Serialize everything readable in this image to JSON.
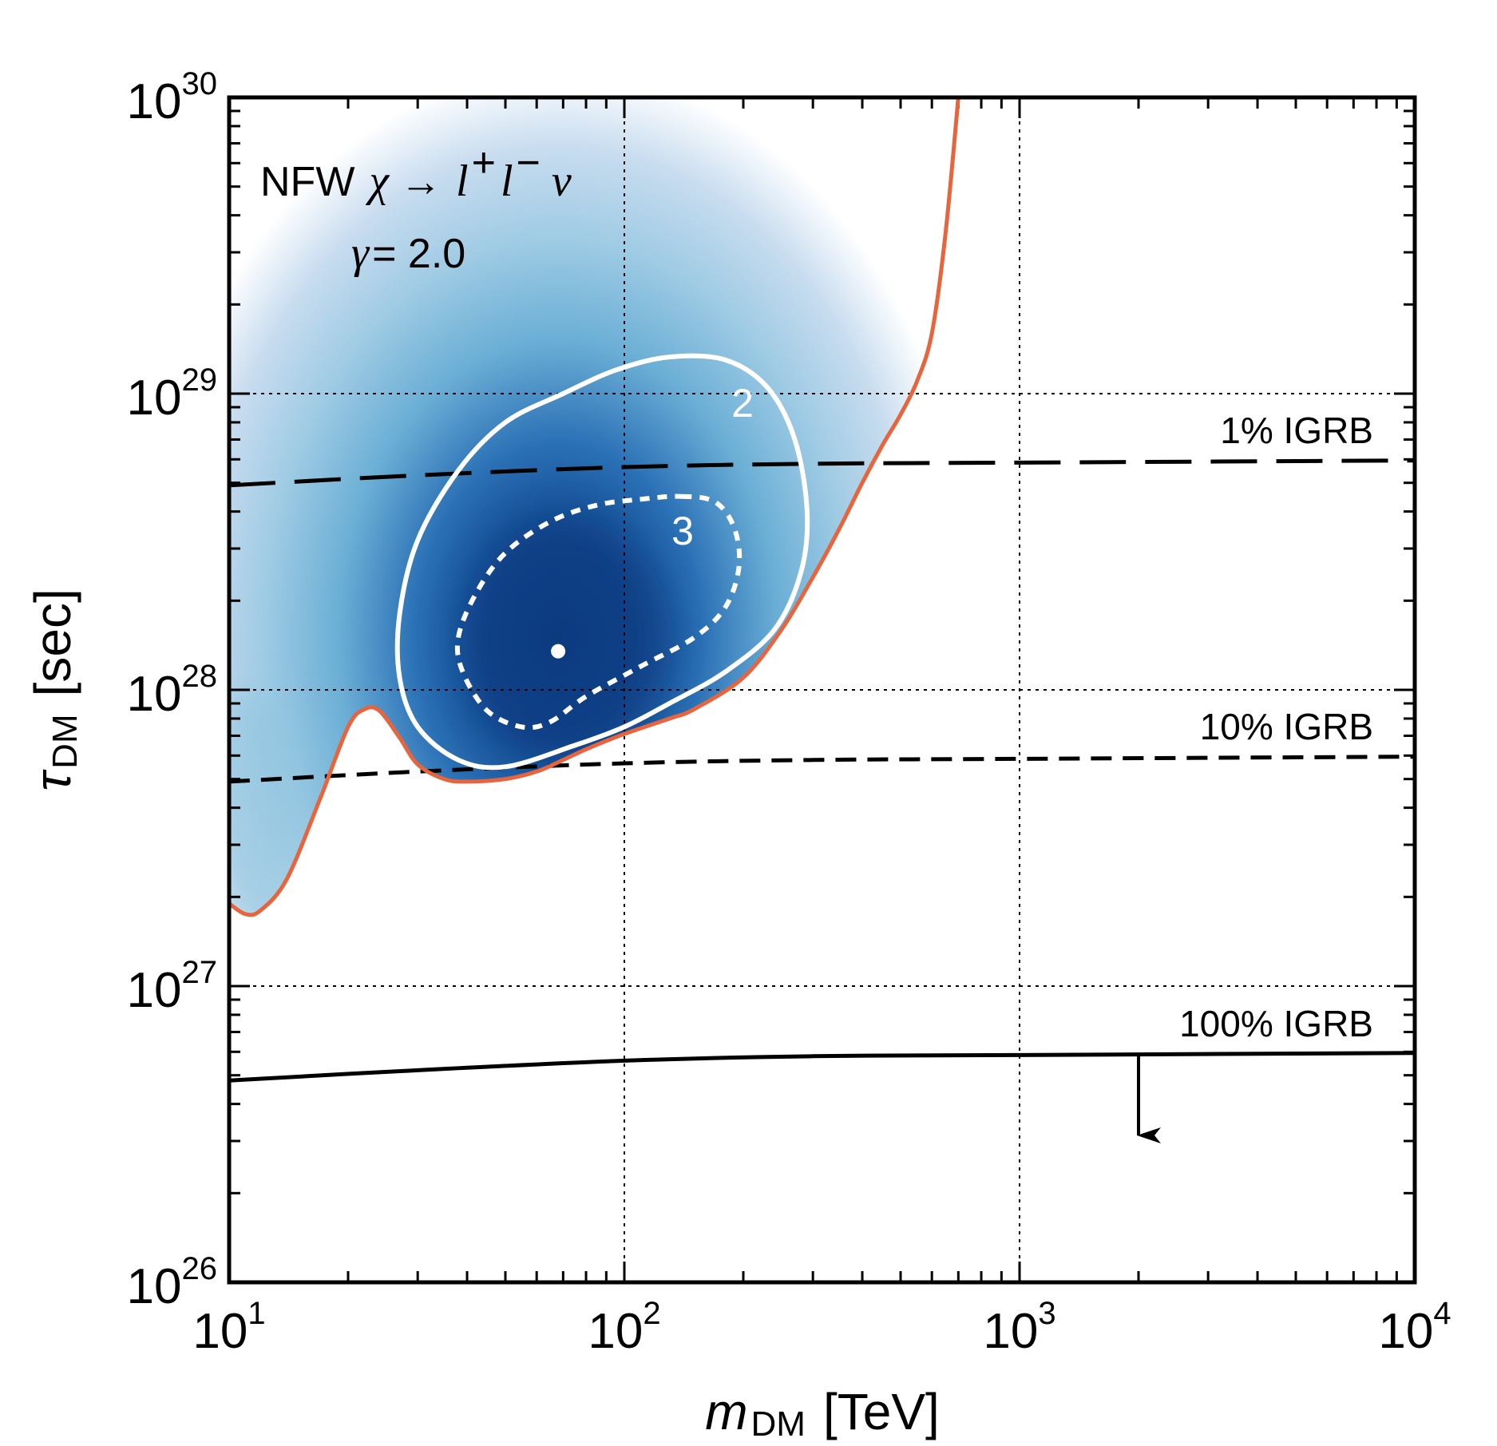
{
  "chart_data": {
    "type": "line",
    "xscale": "log",
    "yscale": "log",
    "xlim": [
      10,
      10000
    ],
    "ylim": [
      1e+26,
      1e+30
    ],
    "grid": true,
    "xlabel": {
      "var": "m",
      "sub": "DM",
      "unit": "[TeV]"
    },
    "ylabel": {
      "var": "τ",
      "sub": "DM",
      "unit": "[sec]"
    },
    "x_ticks": [
      {
        "value": 10,
        "base": "10",
        "exp": "1"
      },
      {
        "value": 100,
        "base": "10",
        "exp": "2"
      },
      {
        "value": 1000,
        "base": "10",
        "exp": "3"
      },
      {
        "value": 10000,
        "base": "10",
        "exp": "4"
      }
    ],
    "y_ticks": [
      {
        "value": 1e+26,
        "base": "10",
        "exp": "26"
      },
      {
        "value": 1e+27,
        "base": "10",
        "exp": "27"
      },
      {
        "value": 1e+28,
        "base": "10",
        "exp": "28"
      },
      {
        "value": 1e+29,
        "base": "10",
        "exp": "29"
      },
      {
        "value": 1e+30,
        "base": "10",
        "exp": "30"
      }
    ],
    "annotation": {
      "line1_prefix": "NFW",
      "line1_chi": "χ",
      "line1_arrow": "→",
      "line1_l": "l",
      "line1_plus": "+",
      "line1_minus": "−",
      "line1_nu": "ν",
      "line2_gamma": "γ",
      "line2_rest": " = 2.0"
    },
    "series": [
      {
        "label": "1% IGRB",
        "style": "long-dash",
        "color": "#000000",
        "x": [
          10,
          30,
          100,
          300,
          1000,
          10000
        ],
        "y": [
          4.9e+28,
          5.3e+28,
          5.65e+28,
          5.8e+28,
          5.85e+28,
          5.95e+28
        ]
      },
      {
        "label": "10% IGRB",
        "style": "dash",
        "color": "#000000",
        "x": [
          10,
          30,
          100,
          300,
          1000,
          10000
        ],
        "y": [
          4.9e+27,
          5.3e+27,
          5.65e+27,
          5.8e+27,
          5.85e+27,
          5.95e+27
        ]
      },
      {
        "label": "100% IGRB",
        "style": "solid",
        "color": "#000000",
        "x": [
          10,
          30,
          100,
          300,
          1000,
          10000
        ],
        "y": [
          4.8e+26,
          5.2e+26,
          5.6e+26,
          5.8e+26,
          5.85e+26,
          5.95e+26
        ],
        "arrow": {
          "x": 2000,
          "y_from": 5.9e+26,
          "y_to": 2.6e+26
        }
      },
      {
        "label": "",
        "style": "solid",
        "color": "#e8643c",
        "x": [
          10,
          11,
          12,
          14,
          17,
          20,
          22,
          24,
          27,
          30,
          35,
          40,
          50,
          60,
          70,
          80,
          100,
          130,
          150,
          200,
          250,
          300,
          350,
          400,
          450,
          500,
          550,
          600,
          650,
          700
        ],
        "y": [
          1.9e+27,
          1.75e+27,
          1.8e+27,
          2.3e+27,
          4.3e+27,
          7.5e+27,
          8.6e+27,
          8.5e+27,
          6.9e+27,
          5.6e+27,
          5e+27,
          4.9e+27,
          5e+27,
          5.3e+27,
          5.8e+27,
          6.3e+27,
          7.1e+27,
          8e+27,
          8.6e+27,
          1.1e+28,
          1.6e+28,
          2.4e+28,
          3.5e+28,
          5e+28,
          6.7e+28,
          8.5e+28,
          1.1e+29,
          1.6e+29,
          3.5e+29,
          1e+30
        ]
      }
    ],
    "contours": [
      {
        "level_label": "2",
        "style": "solid",
        "color": "#ffffff",
        "x": [
          130,
          180,
          230,
          270,
          290,
          280,
          240,
          180,
          130,
          100,
          75,
          50,
          38,
          30,
          27,
          27,
          30,
          38,
          50,
          70,
          95,
          130
        ],
        "y": [
          1.33e+29,
          1.3e+29,
          1.05e+29,
          7e+28,
          4e+28,
          2.5e+28,
          1.6e+28,
          1.15e+28,
          9e+27,
          7.5e+27,
          6.5e+27,
          5.5e+27,
          5.8e+27,
          7.5e+27,
          1.1e+28,
          1.8e+28,
          3.2e+28,
          5.5e+28,
          8e+28,
          1e+29,
          1.2e+29,
          1.33e+29
        ]
      },
      {
        "level_label": "3",
        "style": "dotted",
        "color": "#ffffff",
        "x": [
          140,
          170,
          190,
          195,
          180,
          150,
          110,
          80,
          65,
          55,
          45,
          39,
          38,
          42,
          50,
          65,
          85,
          110,
          140
        ],
        "y": [
          4.5e+28,
          4.3e+28,
          3.5e+28,
          2.6e+28,
          1.9e+28,
          1.5e+28,
          1.2e+28,
          9.5e+27,
          7.8e+27,
          7.5e+27,
          8.5e+27,
          1.15e+28,
          1.5e+28,
          2.1e+28,
          2.9e+28,
          3.7e+28,
          4.2e+28,
          4.4e+28,
          4.5e+28
        ]
      }
    ],
    "best_fit": {
      "x": 68,
      "y": 1.35e+28
    },
    "density_peak": {
      "x": 68,
      "y": 1.5e+28
    },
    "colors": {
      "exclusion": "#e8643c",
      "density_core": "#0b3a80",
      "density_mid": "#2a70b5",
      "density_outer": "#8cc4de",
      "density_edge": "#d6e3f3"
    }
  }
}
